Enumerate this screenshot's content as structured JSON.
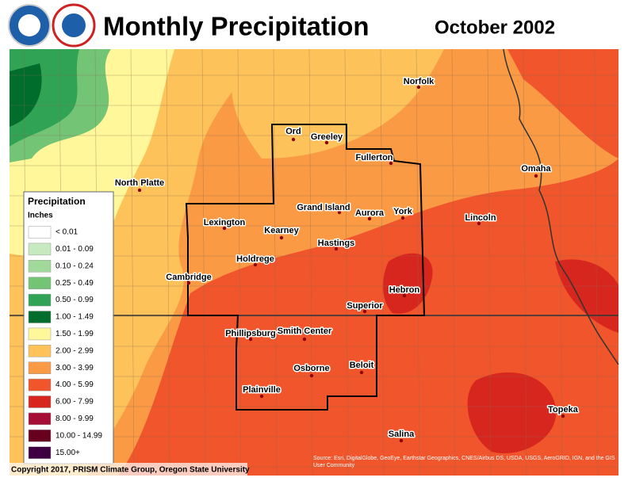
{
  "header": {
    "title": "Monthly Precipitation",
    "period": "October 2002"
  },
  "legend": {
    "title": "Precipitation",
    "units": "Inches",
    "items": [
      {
        "label": "< 0.01",
        "color": "#ffffff"
      },
      {
        "label": "0.01 - 0.09",
        "color": "#c7e9c0"
      },
      {
        "label": "0.10 - 0.24",
        "color": "#a1d99b"
      },
      {
        "label": "0.25 - 0.49",
        "color": "#74c476"
      },
      {
        "label": "0.50 - 0.99",
        "color": "#31a354"
      },
      {
        "label": "1.00 - 1.49",
        "color": "#006d2c"
      },
      {
        "label": "1.50 - 1.99",
        "color": "#fff799"
      },
      {
        "label": "2.00 - 2.99",
        "color": "#fdc35a"
      },
      {
        "label": "3.00 - 3.99",
        "color": "#fb9a45"
      },
      {
        "label": "4.00 - 5.99",
        "color": "#f0552b"
      },
      {
        "label": "6.00 - 7.99",
        "color": "#d7261e"
      },
      {
        "label": "8.00 - 9.99",
        "color": "#a50f35"
      },
      {
        "label": "10.00 - 14.99",
        "color": "#67001f"
      },
      {
        "label": "15.00+",
        "color": "#3f0041"
      }
    ]
  },
  "cities": [
    "Norfolk",
    "Ord",
    "Greeley",
    "Fullerton",
    "Omaha",
    "North Platte",
    "Grand Island",
    "Aurora",
    "York",
    "Lincoln",
    "Lexington",
    "Kearney",
    "Hastings",
    "Holdrege",
    "Cambridge",
    "Hebron",
    "Superior",
    "Phillipsburg",
    "Smith Center",
    "Beloit",
    "Osborne",
    "Plainville",
    "Topeka",
    "Salina"
  ],
  "footer": {
    "copyright": "Copyright 2017, PRISM Climate Group, Oregon State University",
    "source": "Source: Esri, DigitalGlobe, GeoEye, Earthstar Geographics, CNES/Airbus DS, USDA, USGS, AeroGRID, IGN, and the GIS User Community"
  }
}
